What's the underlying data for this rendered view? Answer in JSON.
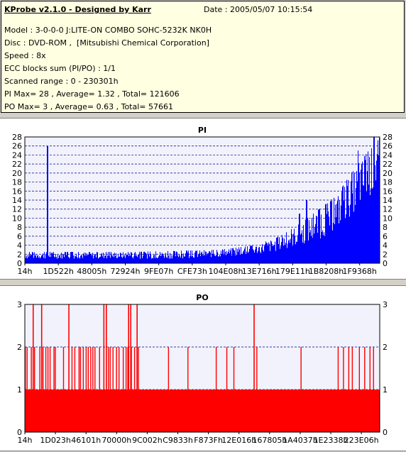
{
  "header": {
    "app_title": "KProbe v2.1.0 - Designed by Karr",
    "date": "Date : 2005/05/07 10:15:54",
    "lines": [
      "Model : 3-0-0-0 J:LITE-ON COMBO SOHC-5232K NK0H",
      "Disc : DVD-ROM ,  [Mitsubishi Chemical Corporation]",
      "Speed : 8x",
      "ECC blocks sum (PI/PO) : 1/1",
      "Scanned range : 0 - 230301h",
      "PI Max= 28 , Average= 1.32 , Total= 121606",
      "PO Max= 3 , Average= 0.63 , Total= 57661"
    ]
  },
  "colors": {
    "background": "#d4d0c8",
    "info_bg": "#ffffe1",
    "plot_bg": "#f2f2fc",
    "pi_bar": "#0000ff",
    "po_bar": "#ff0000",
    "grid": "#000080"
  },
  "chart_data": [
    {
      "type": "bar",
      "title": "PI",
      "ylim": [
        0,
        28
      ],
      "yticks": [
        0,
        2,
        4,
        6,
        8,
        10,
        12,
        14,
        16,
        18,
        20,
        22,
        24,
        26,
        28
      ],
      "grid": true,
      "xlim": [
        0,
        230301
      ],
      "xtick_labels": [
        "14h",
        "1D522h",
        "48005h",
        "72924h",
        "9FE07h",
        "CFE73h",
        "104E08h",
        "13E716h",
        "179E11h",
        "1B8208h",
        "1F9368h"
      ],
      "baseline_values": [
        [
          0,
          1
        ],
        [
          0.1,
          1
        ],
        [
          0.2,
          1
        ],
        [
          0.3,
          1
        ],
        [
          0.4,
          1
        ],
        [
          0.5,
          1.2
        ],
        [
          0.6,
          1.6
        ],
        [
          0.7,
          2.5
        ],
        [
          0.75,
          3.5
        ],
        [
          0.8,
          4.5
        ],
        [
          0.85,
          6
        ],
        [
          0.9,
          9
        ],
        [
          0.95,
          13
        ],
        [
          1.0,
          17
        ]
      ],
      "max_values": [
        [
          0,
          2.5
        ],
        [
          0.3,
          2.5
        ],
        [
          0.55,
          3
        ],
        [
          0.65,
          4
        ],
        [
          0.72,
          6
        ],
        [
          0.78,
          9
        ],
        [
          0.83,
          12
        ],
        [
          0.88,
          15
        ],
        [
          0.92,
          20
        ],
        [
          0.96,
          24
        ],
        [
          1.0,
          28
        ]
      ],
      "spikes": [
        [
          0.063,
          26
        ],
        [
          0.795,
          14
        ],
        [
          0.775,
          11
        ],
        [
          0.83,
          12
        ],
        [
          0.94,
          25
        ],
        [
          0.985,
          28
        ]
      ]
    },
    {
      "type": "bar",
      "title": "PO",
      "ylim": [
        0,
        3
      ],
      "yticks": [
        0,
        1,
        2,
        3
      ],
      "grid": true,
      "xlim": [
        0,
        230301
      ],
      "xtick_labels": [
        "14h",
        "1D023h",
        "46101h",
        "70000h",
        "9C002h",
        "C9833h",
        "F873Fh",
        "12E016h",
        "167805h",
        "1A4037h",
        "1E2338h",
        "223E06h"
      ],
      "base_value": 1,
      "spikes_at_2": [
        0.0,
        0.005,
        0.017,
        0.026,
        0.041,
        0.05,
        0.058,
        0.064,
        0.07,
        0.081,
        0.085,
        0.108,
        0.132,
        0.14,
        0.152,
        0.156,
        0.164,
        0.172,
        0.178,
        0.185,
        0.191,
        0.197,
        0.21,
        0.235,
        0.24,
        0.248,
        0.258,
        0.265,
        0.277,
        0.285,
        0.29,
        0.3,
        0.309,
        0.316,
        0.32,
        0.405,
        0.46,
        0.54,
        0.57,
        0.59,
        0.655,
        0.78,
        0.885,
        0.9,
        0.915,
        0.925,
        0.945,
        0.96,
        0.975,
        0.985
      ],
      "spikes_at_3": [
        0.022,
        0.046,
        0.123,
        0.222,
        0.229,
        0.292,
        0.298,
        0.316,
        0.647
      ]
    }
  ]
}
